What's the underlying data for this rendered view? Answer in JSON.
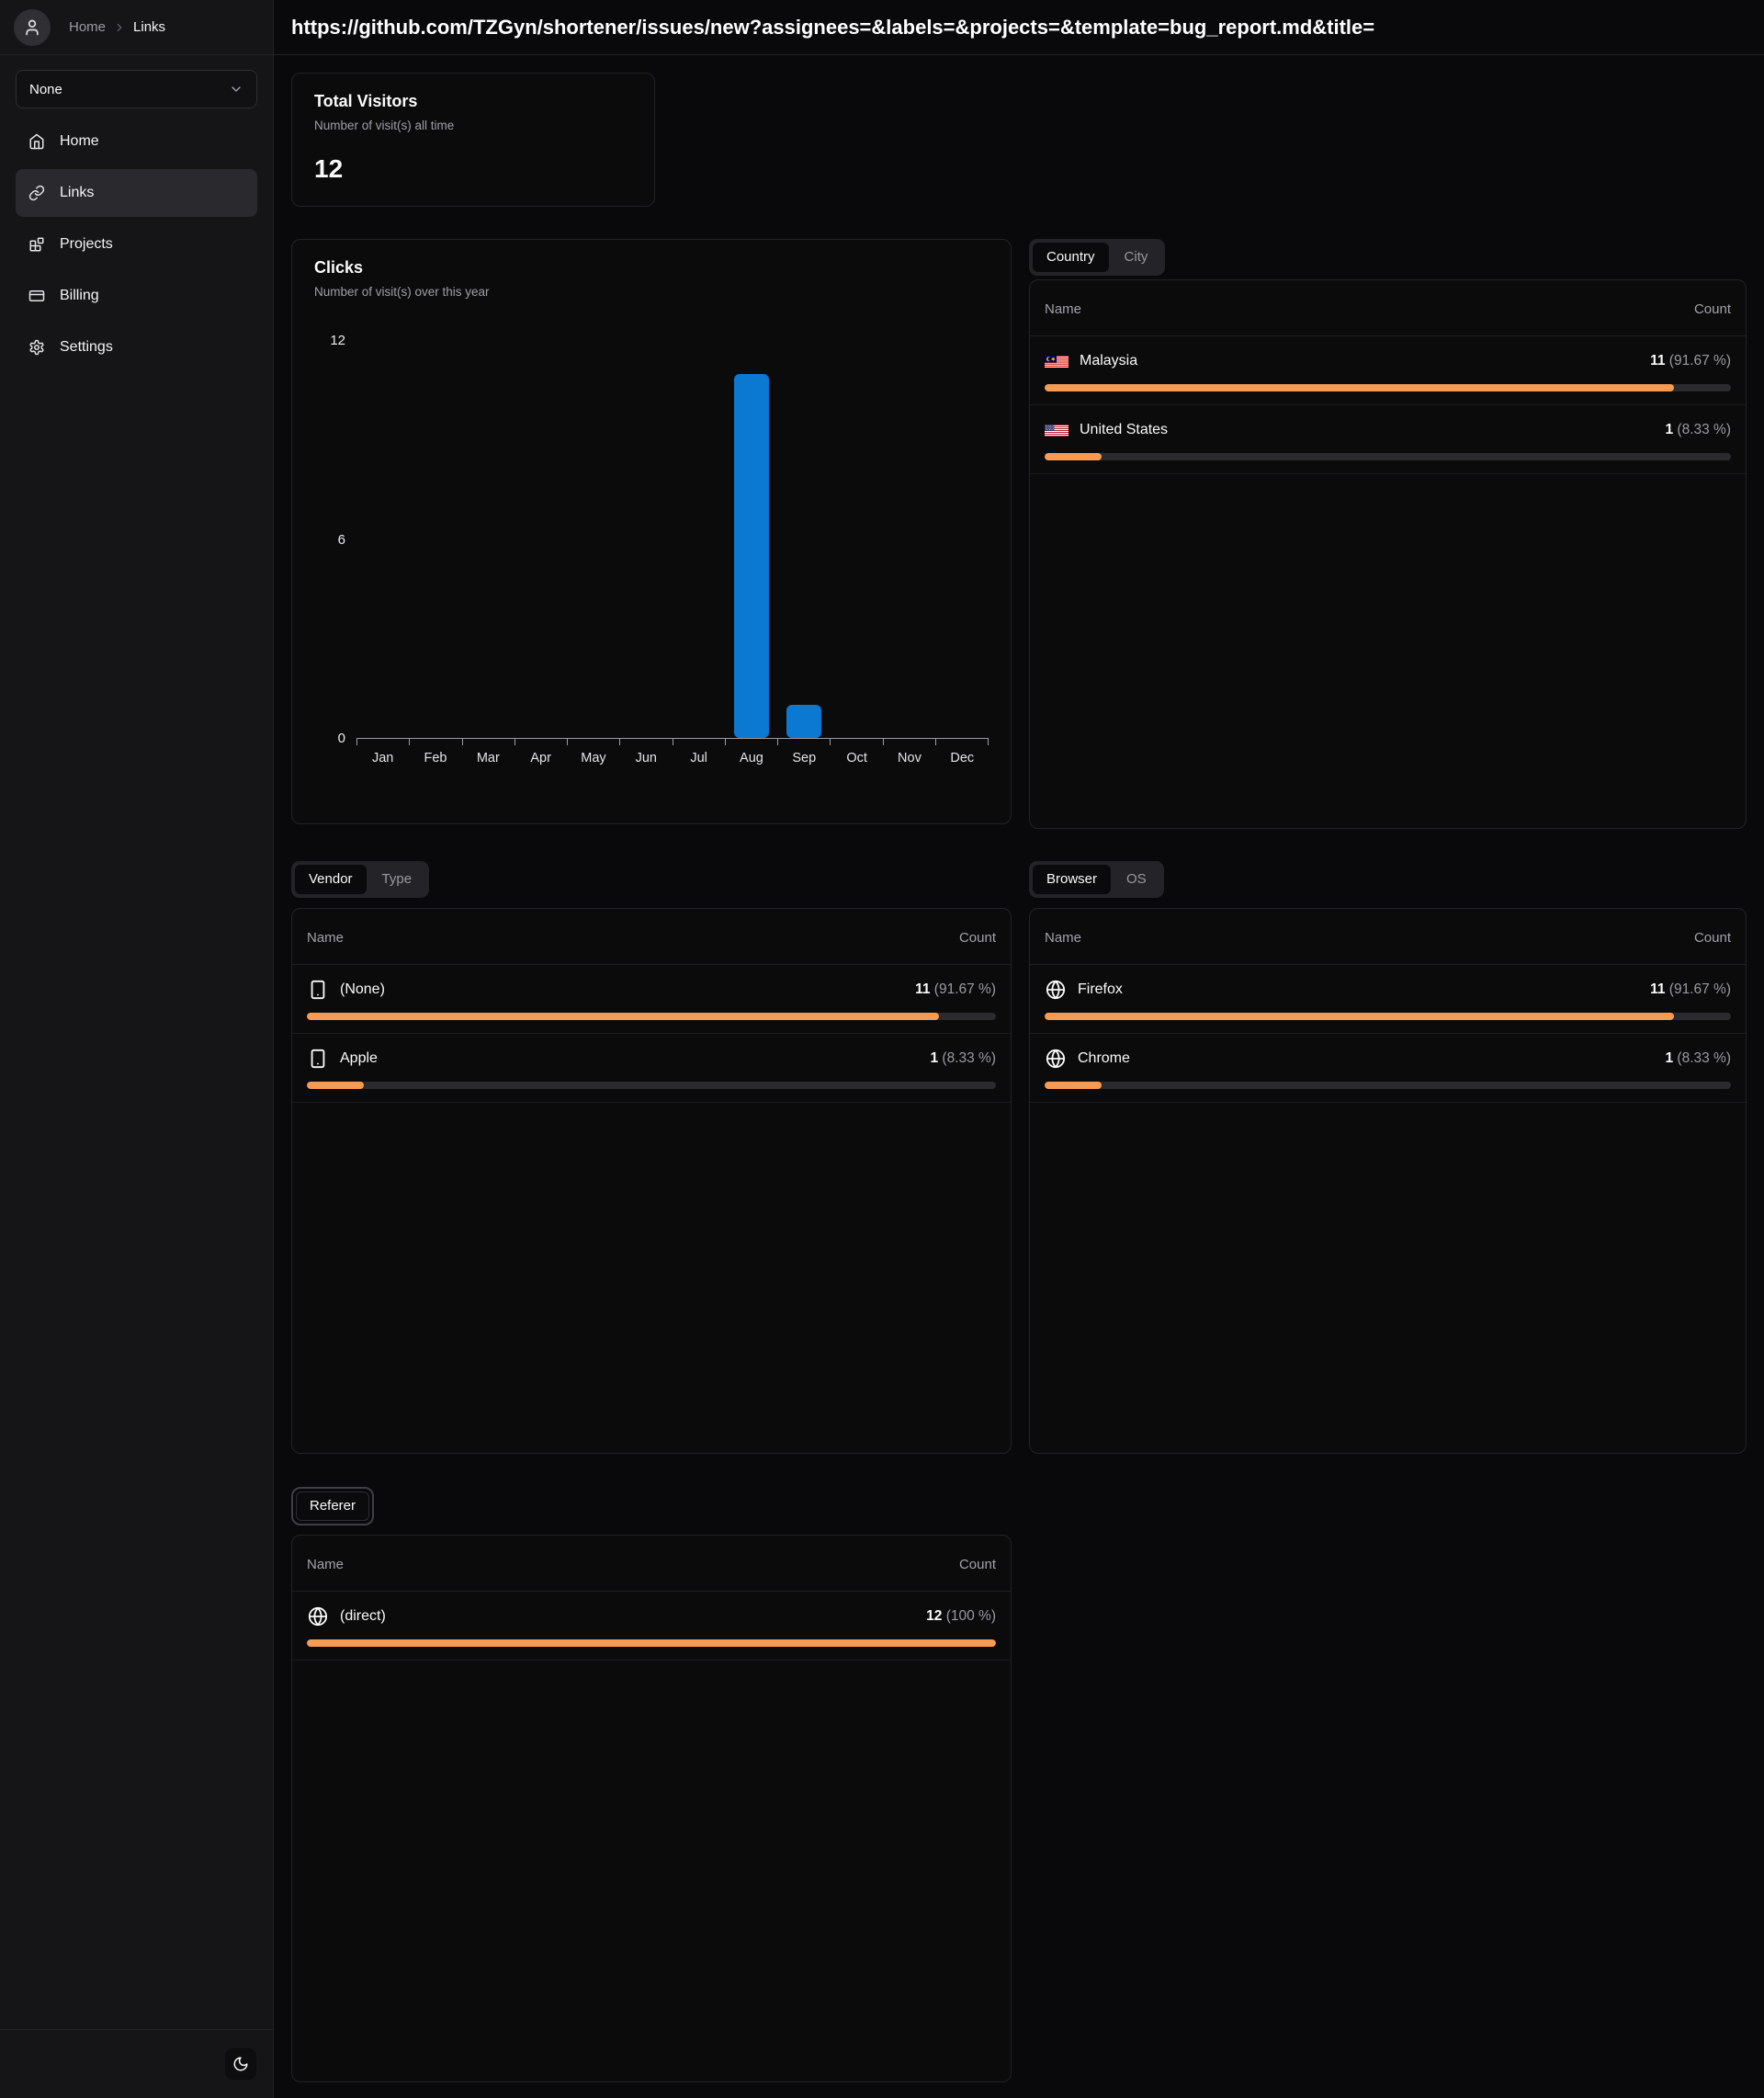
{
  "colors": {
    "accent-orange": "#f89b52",
    "chart-blue": "#0b78d1"
  },
  "topbar": {
    "breadcrumb": {
      "home": "Home",
      "current": "Links"
    },
    "url": "https://github.com/TZGyn/shortener/issues/new?assignees=&labels=&projects=&template=bug_report.md&title="
  },
  "sidebar": {
    "project_select": {
      "value": "None"
    },
    "items": [
      {
        "label": "Home",
        "icon": "home"
      },
      {
        "label": "Links",
        "icon": "link",
        "active": true
      },
      {
        "label": "Projects",
        "icon": "blocks"
      },
      {
        "label": "Billing",
        "icon": "credit-card"
      },
      {
        "label": "Settings",
        "icon": "gear"
      }
    ]
  },
  "stats": {
    "total_visitors": {
      "title": "Total Visitors",
      "subtitle": "Number of visit(s) all time",
      "value": "12"
    }
  },
  "chart_data": {
    "type": "bar",
    "title": "Clicks",
    "subtitle": "Number of visit(s) over this year",
    "categories": [
      "Jan",
      "Feb",
      "Mar",
      "Apr",
      "May",
      "Jun",
      "Jul",
      "Aug",
      "Sep",
      "Oct",
      "Nov",
      "Dec"
    ],
    "values": [
      0,
      0,
      0,
      0,
      0,
      0,
      0,
      11,
      1,
      0,
      0,
      0
    ],
    "xlabel": "",
    "ylabel": "",
    "ylim": [
      0,
      12
    ],
    "yticks": [
      0,
      6,
      12
    ],
    "grid": false,
    "legend": "none",
    "bar_color": "#0b78d1"
  },
  "panels": {
    "location": {
      "tabs": [
        {
          "label": "Country",
          "active": true
        },
        {
          "label": "City",
          "active": false
        }
      ],
      "columns": {
        "name": "Name",
        "count": "Count"
      },
      "rows": [
        {
          "name": "Malaysia",
          "icon": "flag-malaysia",
          "count": "11",
          "percent": "(91.67 %)",
          "bar_width": "91.67%"
        },
        {
          "name": "United States",
          "icon": "flag-united-states",
          "count": "1",
          "percent": "(8.33 %)",
          "bar_width": "8.33%"
        }
      ]
    },
    "vendor": {
      "tabs": [
        {
          "label": "Vendor",
          "active": true
        },
        {
          "label": "Type",
          "active": false
        }
      ],
      "columns": {
        "name": "Name",
        "count": "Count"
      },
      "rows": [
        {
          "name": "(None)",
          "icon": "smartphone",
          "count": "11",
          "percent": "(91.67 %)",
          "bar_width": "91.67%"
        },
        {
          "name": "Apple",
          "icon": "smartphone",
          "count": "1",
          "percent": "(8.33 %)",
          "bar_width": "8.33%"
        }
      ]
    },
    "browser": {
      "tabs": [
        {
          "label": "Browser",
          "active": true
        },
        {
          "label": "OS",
          "active": false
        }
      ],
      "columns": {
        "name": "Name",
        "count": "Count"
      },
      "rows": [
        {
          "name": "Firefox",
          "icon": "globe",
          "count": "11",
          "percent": "(91.67 %)",
          "bar_width": "91.67%"
        },
        {
          "name": "Chrome",
          "icon": "globe",
          "count": "1",
          "percent": "(8.33 %)",
          "bar_width": "8.33%"
        }
      ]
    },
    "referer": {
      "tabs": [
        {
          "label": "Referer",
          "active": true
        }
      ],
      "columns": {
        "name": "Name",
        "count": "Count"
      },
      "rows": [
        {
          "name": "(direct)",
          "icon": "globe",
          "count": "12",
          "percent": "(100 %)",
          "bar_width": "100%"
        }
      ]
    }
  }
}
